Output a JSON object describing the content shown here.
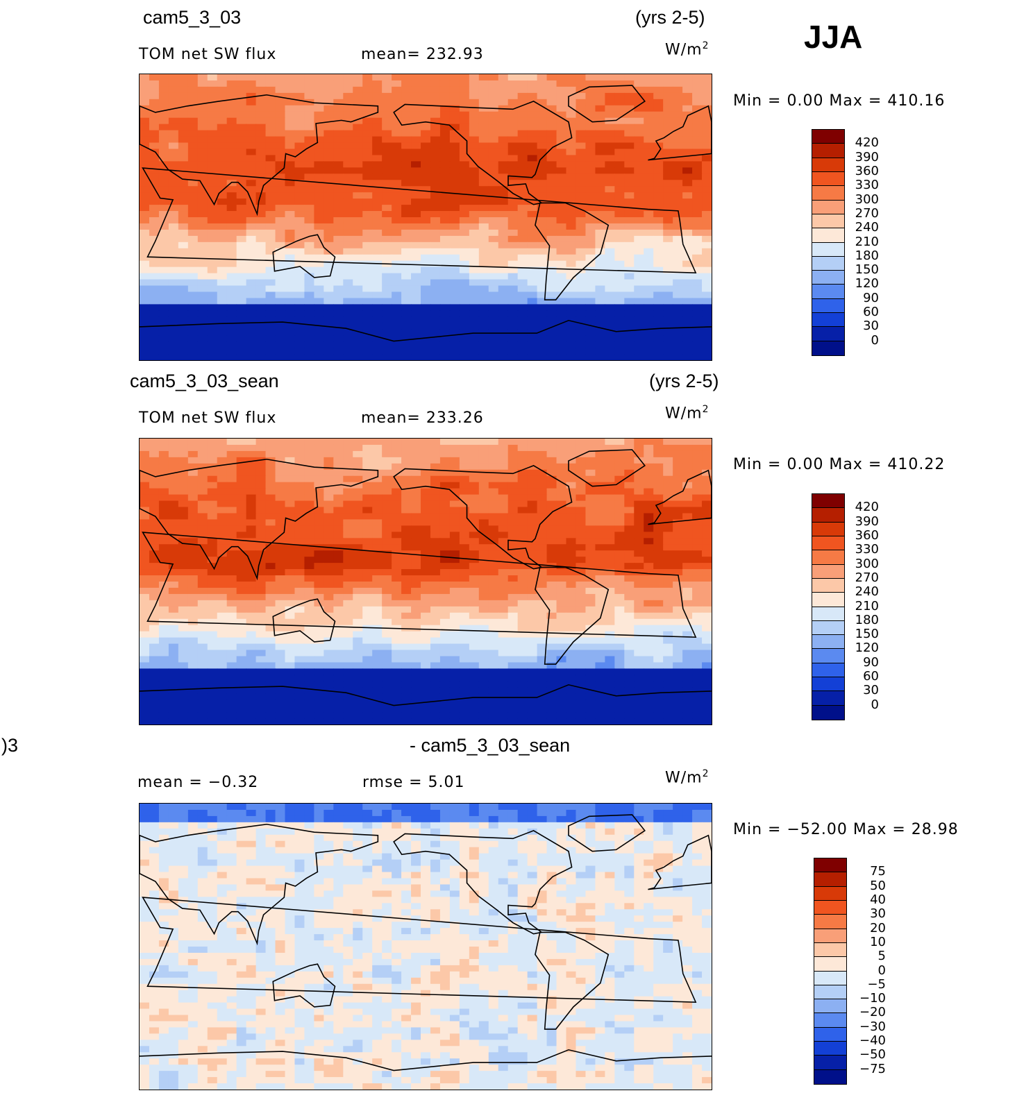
{
  "season": "JJA",
  "panels": [
    {
      "case_name": "cam5_3_03",
      "years": "(yrs 2-5)",
      "variable": "TOM net SW flux",
      "stat1": "mean=  232.93",
      "stat2": "",
      "units": "W/m",
      "units_sup": "2",
      "minmax": "Min =    0.00 Max = 410.16"
    },
    {
      "case_name": "cam5_3_03_sean",
      "years": "(yrs 2-5)",
      "variable": "TOM net SW flux",
      "stat1": "mean=  233.26",
      "stat2": "",
      "units": "W/m",
      "units_sup": "2",
      "minmax": "Min =    0.00 Max = 410.22"
    },
    {
      "case_name_left": ")3",
      "case_name": "- cam5_3_03_sean",
      "variable": "mean =   −0.32",
      "stat1": "rmse =    5.01",
      "units": "W/m",
      "units_sup": "2",
      "minmax": "Min = −52.00 Max =   28.98"
    }
  ],
  "chart_data": [
    {
      "type": "heatmap",
      "title": "cam5_3_03",
      "subtitle": "TOM net SW flux",
      "mean": 232.93,
      "min": 0.0,
      "max": 410.16,
      "units": "W/m2",
      "levels": [
        420,
        390,
        360,
        330,
        300,
        270,
        240,
        210,
        180,
        150,
        120,
        90,
        60,
        30,
        0
      ],
      "colors": [
        "#7f0000",
        "#b51f00",
        "#d83a08",
        "#f05520",
        "#f67a45",
        "#f99f78",
        "#fcc8a8",
        "#fde8d8",
        "#d8e8f8",
        "#b4cff6",
        "#8cb0f2",
        "#5b8af0",
        "#2f62ea",
        "#1340d6",
        "#0620a8",
        "#00108a"
      ]
    },
    {
      "type": "heatmap",
      "title": "cam5_3_03_sean",
      "subtitle": "TOM net SW flux",
      "mean": 233.26,
      "min": 0.0,
      "max": 410.22,
      "units": "W/m2",
      "levels": [
        420,
        390,
        360,
        330,
        300,
        270,
        240,
        210,
        180,
        150,
        120,
        90,
        60,
        30,
        0
      ],
      "colors": [
        "#7f0000",
        "#b51f00",
        "#d83a08",
        "#f05520",
        "#f67a45",
        "#f99f78",
        "#fcc8a8",
        "#fde8d8",
        "#d8e8f8",
        "#b4cff6",
        "#8cb0f2",
        "#5b8af0",
        "#2f62ea",
        "#1340d6",
        "#0620a8",
        "#00108a"
      ]
    },
    {
      "type": "heatmap",
      "title": "- cam5_3_03_sean",
      "mean": -0.32,
      "rmse": 5.01,
      "min": -52.0,
      "max": 28.98,
      "units": "W/m2",
      "levels": [
        "75",
        "50",
        "40",
        "30",
        "20",
        "10",
        "5",
        "0",
        "−5",
        "−10",
        "−20",
        "−30",
        "−40",
        "−50",
        "−75"
      ],
      "colors": [
        "#7f0000",
        "#b51f00",
        "#d83a08",
        "#f05520",
        "#f67a45",
        "#f99f78",
        "#fcc8a8",
        "#fde8d8",
        "#d8e8f8",
        "#b4cff6",
        "#8cb0f2",
        "#5b8af0",
        "#2f62ea",
        "#1340d6",
        "#0620a8",
        "#00108a"
      ]
    }
  ]
}
